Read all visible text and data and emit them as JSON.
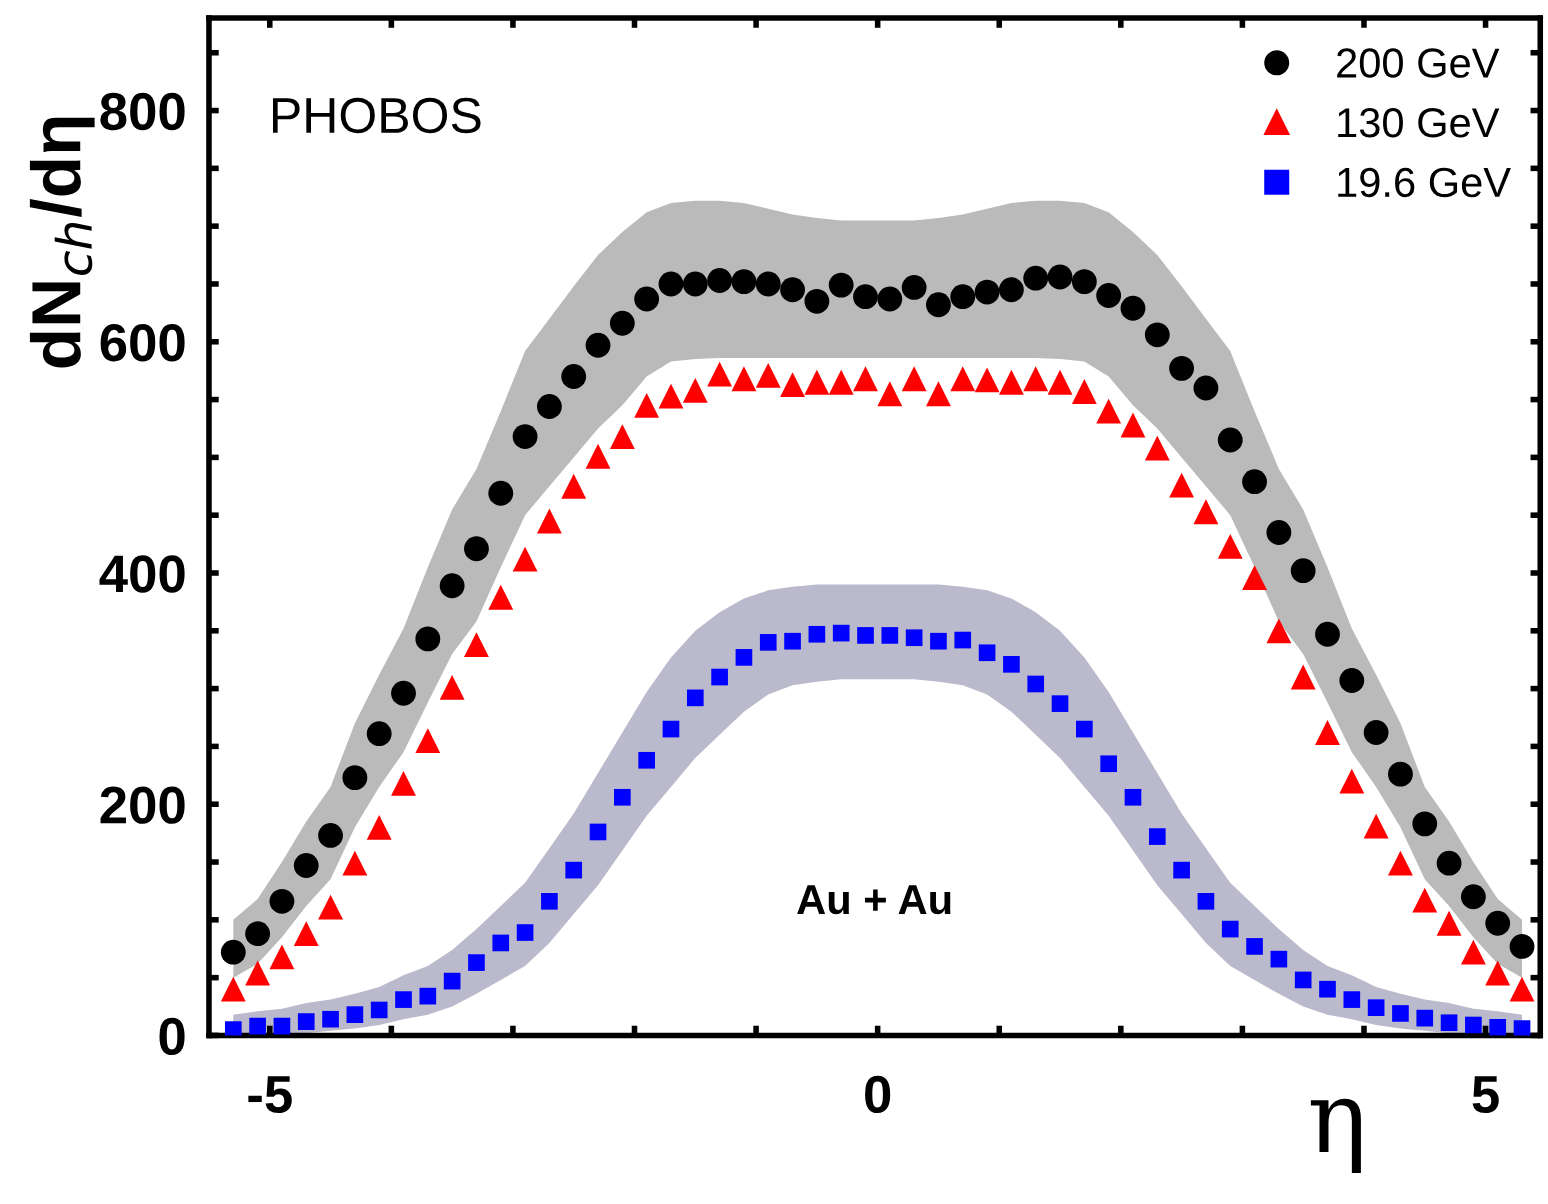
{
  "chart_data": {
    "type": "scatter",
    "xlabel": "η",
    "ylabel": "dN$_{ch}$/dη",
    "annotations": [
      "PHOBOS",
      "Au + Au"
    ],
    "x": [
      -5.3,
      -5.1,
      -4.9,
      -4.7,
      -4.5,
      -4.3,
      -4.1,
      -3.9,
      -3.7,
      -3.5,
      -3.3,
      -3.1,
      -2.9,
      -2.7,
      -2.5,
      -2.3,
      -2.1,
      -1.9,
      -1.7,
      -1.5,
      -1.3,
      -1.1,
      -0.9,
      -0.7,
      -0.5,
      -0.3,
      -0.1,
      0.1,
      0.3,
      0.5,
      0.7,
      0.9,
      1.1,
      1.3,
      1.5,
      1.7,
      1.9,
      2.1,
      2.3,
      2.5,
      2.7,
      2.9,
      3.1,
      3.3,
      3.5,
      3.7,
      3.9,
      4.1,
      4.3,
      4.5,
      4.7,
      4.9,
      5.1,
      5.3
    ],
    "series": [
      {
        "name": "200 GeV",
        "color": "#000000",
        "marker": "circle",
        "values": [
          72,
          88,
          116,
          147,
          173,
          223,
          261,
          296,
          343,
          389,
          421,
          469,
          518,
          544,
          570,
          597,
          616,
          637,
          650,
          650,
          653,
          652,
          650,
          645,
          635,
          649,
          639,
          637,
          647,
          632,
          639,
          643,
          645,
          655,
          656,
          652,
          640,
          629,
          606,
          577,
          560,
          515,
          479,
          435,
          402,
          347,
          307,
          262,
          226,
          183,
          149,
          120,
          97,
          77
        ],
        "upper": [
          100,
          118,
          150,
          185,
          215,
          270,
          312,
          352,
          405,
          455,
          490,
          540,
          592,
          620,
          648,
          675,
          695,
          712,
          720,
          722,
          722,
          720,
          715,
          710,
          707,
          705,
          705,
          705,
          705,
          707,
          710,
          715,
          720,
          722,
          722,
          720,
          712,
          695,
          675,
          648,
          620,
          592,
          540,
          490,
          455,
          405,
          352,
          312,
          270,
          215,
          185,
          150,
          118,
          100
        ],
        "lower": [
          50,
          62,
          85,
          112,
          135,
          180,
          215,
          245,
          288,
          330,
          358,
          405,
          450,
          475,
          500,
          525,
          545,
          570,
          583,
          585,
          586,
          586,
          586,
          586,
          586,
          586,
          586,
          586,
          586,
          586,
          586,
          586,
          586,
          586,
          585,
          583,
          570,
          545,
          525,
          500,
          475,
          450,
          405,
          358,
          330,
          288,
          245,
          215,
          180,
          135,
          112,
          85,
          62,
          50
        ]
      },
      {
        "name": "130 GeV",
        "color": "#ff0000",
        "marker": "triangle",
        "values": [
          40,
          54,
          68,
          88,
          111,
          149,
          180,
          218,
          255,
          301,
          338,
          379,
          412,
          445,
          475,
          501,
          518,
          545,
          553,
          558,
          572,
          568,
          571,
          563,
          565,
          565,
          568,
          555,
          568,
          555,
          568,
          567,
          565,
          568,
          565,
          557,
          540,
          528,
          508,
          476,
          453,
          423,
          396,
          350,
          310,
          262,
          220,
          181,
          149,
          117,
          97,
          72,
          54,
          40
        ]
      },
      {
        "name": "19.6 GeV",
        "color": "#0000ff",
        "marker": "square",
        "values": [
          5,
          8,
          8,
          12,
          14,
          18,
          22,
          31,
          34,
          47,
          63,
          80,
          89,
          116,
          143,
          176,
          206,
          238,
          265,
          292,
          310,
          327,
          340,
          341,
          347,
          348,
          346,
          346,
          344,
          341,
          342,
          331,
          321,
          304,
          287,
          265,
          235,
          206,
          172,
          143,
          116,
          92,
          77,
          66,
          48,
          40,
          31,
          24,
          19,
          15,
          11,
          9,
          7,
          6
        ],
        "upper": [
          18,
          21,
          23,
          28,
          31,
          36,
          42,
          52,
          60,
          74,
          92,
          112,
          132,
          162,
          192,
          227,
          262,
          297,
          327,
          350,
          366,
          378,
          385,
          388,
          390,
          390,
          390,
          390,
          390,
          390,
          388,
          385,
          378,
          366,
          350,
          327,
          297,
          262,
          227,
          192,
          162,
          132,
          112,
          92,
          74,
          60,
          52,
          42,
          36,
          31,
          28,
          23,
          21,
          18
        ],
        "lower": [
          0,
          0,
          0,
          2,
          4,
          6,
          9,
          14,
          18,
          25,
          36,
          48,
          60,
          80,
          105,
          130,
          160,
          190,
          215,
          240,
          260,
          280,
          295,
          303,
          306,
          308,
          308,
          308,
          308,
          306,
          303,
          295,
          280,
          260,
          240,
          215,
          190,
          160,
          130,
          105,
          80,
          60,
          48,
          36,
          25,
          18,
          14,
          9,
          6,
          4,
          2,
          0,
          0,
          0
        ]
      }
    ],
    "xlim": [
      -5.5,
      5.45
    ],
    "ylim": [
      0,
      880
    ],
    "xticks": [
      {
        "value": -5,
        "label": "-5"
      },
      {
        "value": -4,
        "label": null
      },
      {
        "value": -3,
        "label": null
      },
      {
        "value": -2,
        "label": null
      },
      {
        "value": -1,
        "label": null
      },
      0,
      {
        "value": 1,
        "label": null
      },
      {
        "value": 2,
        "label": null
      },
      {
        "value": 3,
        "label": null
      },
      {
        "value": 4,
        "label": null
      },
      5
    ],
    "yticks": [
      0,
      {
        "value": 50,
        "label": null
      },
      {
        "value": 100,
        "label": null
      },
      {
        "value": 150,
        "label": null
      },
      200,
      {
        "value": 250,
        "label": null
      },
      {
        "value": 300,
        "label": null
      },
      {
        "value": 350,
        "label": null
      },
      400,
      {
        "value": 450,
        "label": null
      },
      {
        "value": 500,
        "label": null
      },
      {
        "value": 550,
        "label": null
      },
      600,
      {
        "value": 650,
        "label": null
      },
      {
        "value": 700,
        "label": null
      },
      {
        "value": 750,
        "label": null
      },
      800,
      {
        "value": 850,
        "label": null
      }
    ],
    "grid": false,
    "legend": "top right"
  }
}
